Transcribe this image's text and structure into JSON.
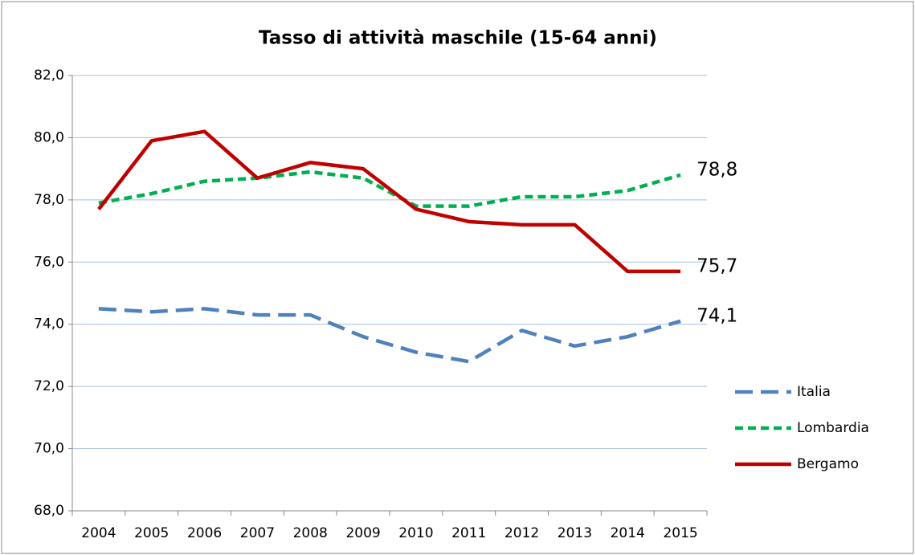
{
  "chart_data": {
    "type": "line",
    "title": "Tasso di attività maschile (15-64 anni)",
    "categories": [
      "2004",
      "2005",
      "2006",
      "2007",
      "2008",
      "2009",
      "2010",
      "2011",
      "2012",
      "2013",
      "2014",
      "2015"
    ],
    "series": [
      {
        "name": "Italia",
        "color": "#4f81bd",
        "dash": "22 10",
        "values": [
          74.5,
          74.4,
          74.5,
          74.3,
          74.3,
          73.6,
          73.1,
          72.8,
          73.8,
          73.3,
          73.6,
          74.1
        ],
        "end_label": "74,1"
      },
      {
        "name": "Lombardia",
        "color": "#00b050",
        "dash": "10 6",
        "values": [
          77.9,
          78.2,
          78.6,
          78.7,
          78.9,
          78.7,
          77.8,
          77.8,
          78.1,
          78.1,
          78.3,
          78.8
        ],
        "end_label": "78,8"
      },
      {
        "name": "Bergamo",
        "color": "#c00000",
        "dash": "none",
        "values": [
          77.7,
          79.9,
          80.2,
          78.7,
          79.2,
          79.0,
          77.7,
          77.3,
          77.2,
          77.2,
          75.7,
          75.7
        ],
        "end_label": "75,7"
      }
    ],
    "ylim": [
      68,
      82
    ],
    "yticks": [
      {
        "value": 68,
        "label": "68,0"
      },
      {
        "value": 70,
        "label": "70,0"
      },
      {
        "value": 72,
        "label": "72,0"
      },
      {
        "value": 74,
        "label": "74,0"
      },
      {
        "value": 76,
        "label": "76,0"
      },
      {
        "value": 78,
        "label": "78,0"
      },
      {
        "value": 80,
        "label": "80,0"
      },
      {
        "value": 82,
        "label": "82,0"
      }
    ],
    "grid": true,
    "legend": "right"
  }
}
